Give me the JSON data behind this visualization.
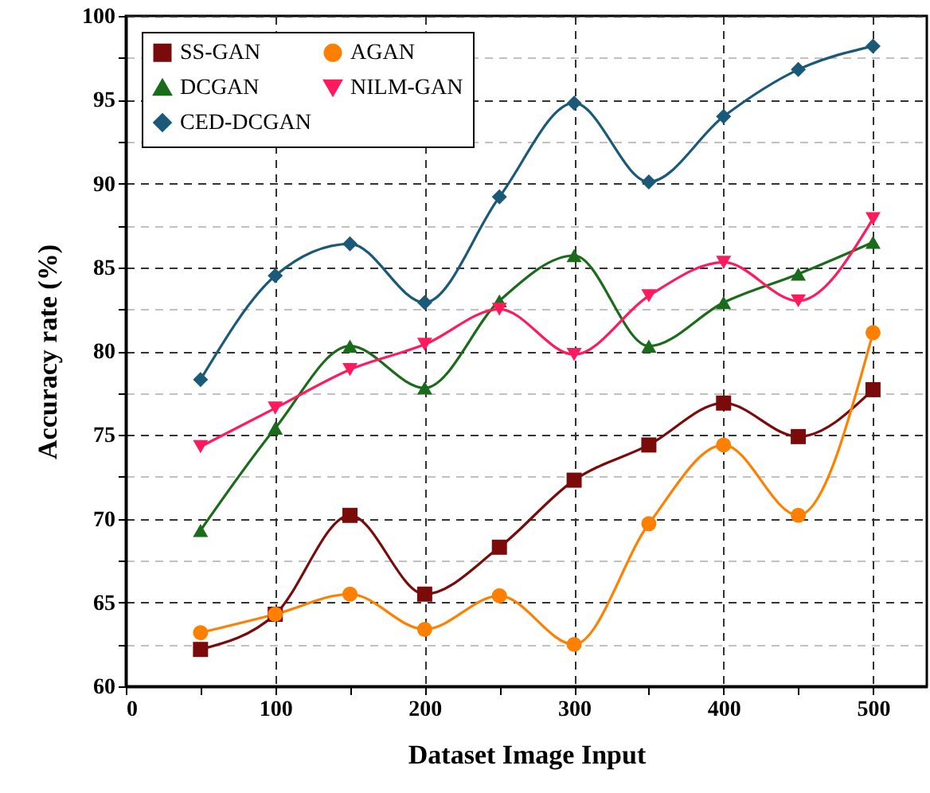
{
  "chart_data": {
    "type": "line",
    "xlabel": "Dataset Image Input",
    "ylabel": "Accuracy rate (%)",
    "x": [
      50,
      100,
      150,
      200,
      250,
      300,
      350,
      400,
      450,
      500
    ],
    "series": [
      {
        "name": "SS-GAN",
        "color": "#7b0a0a",
        "marker": "square",
        "values": [
          62.2,
          64.3,
          70.2,
          65.5,
          68.3,
          72.3,
          74.4,
          76.9,
          74.9,
          77.7
        ]
      },
      {
        "name": "AGAN",
        "color": "#ff8000",
        "marker": "circle",
        "values": [
          63.2,
          64.3,
          65.5,
          63.4,
          65.4,
          62.5,
          69.7,
          74.4,
          70.2,
          81.1
        ]
      },
      {
        "name": "DCGAN",
        "color": "#1a6b1a",
        "marker": "triangle",
        "values": [
          69.3,
          75.4,
          80.3,
          77.8,
          83.0,
          85.7,
          80.3,
          82.9,
          84.6,
          86.5
        ]
      },
      {
        "name": "NILM-GAN",
        "color": "#ff1a5e",
        "marker": "triangle-down",
        "values": [
          74.3,
          76.6,
          78.9,
          80.4,
          82.5,
          79.8,
          83.3,
          85.3,
          83.0,
          87.9
        ]
      },
      {
        "name": "CED-DCGAN",
        "color": "#1a5a78",
        "marker": "diamond",
        "values": [
          78.3,
          84.5,
          86.4,
          82.9,
          89.2,
          94.8,
          90.1,
          94.0,
          96.8,
          98.2
        ]
      }
    ],
    "xlim": [
      0,
      536
    ],
    "ylim": [
      60,
      100
    ],
    "xticks": [
      0,
      {
        "value": 50,
        "label": null
      },
      100,
      {
        "value": 150,
        "label": null
      },
      200,
      {
        "value": 250,
        "label": null
      },
      300,
      {
        "value": 350,
        "label": null
      },
      400,
      {
        "value": 450,
        "label": null
      },
      500
    ],
    "yticks": [
      60,
      {
        "value": 62.5,
        "label": null
      },
      65,
      {
        "value": 67.5,
        "label": null
      },
      70,
      {
        "value": 72.5,
        "label": null
      },
      75,
      {
        "value": 77.5,
        "label": null
      },
      80,
      {
        "value": 82.5,
        "label": null
      },
      85,
      {
        "value": 87.5,
        "label": null
      },
      90,
      {
        "value": 92.5,
        "label": null
      },
      95,
      {
        "value": 97.5,
        "label": null
      },
      100
    ],
    "grid": true,
    "legend": "top left",
    "line_style": "solid"
  }
}
